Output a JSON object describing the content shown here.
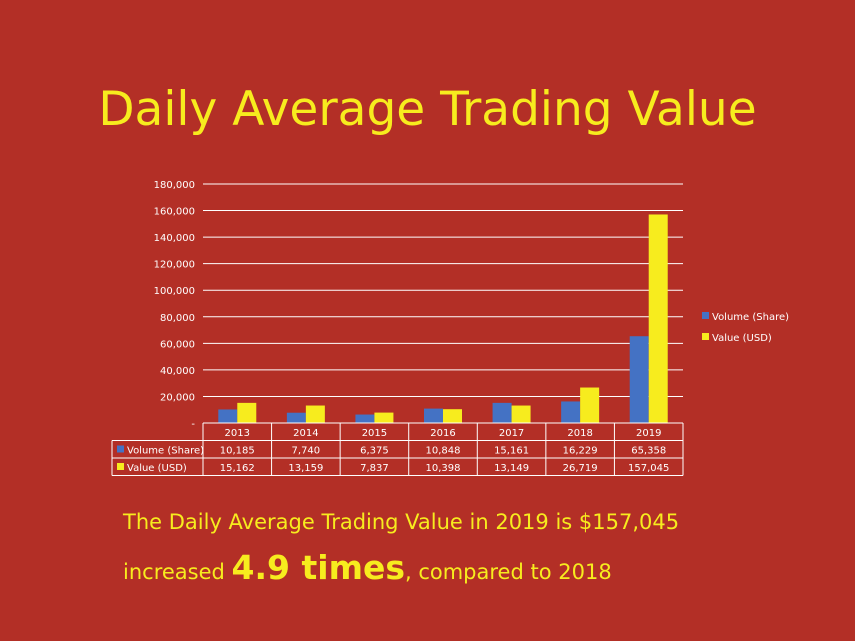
{
  "slide": {
    "title": "Daily Average Trading Value",
    "caption_line1": "The Daily Average Trading Value in 2019 is $157,045",
    "caption_line2_prefix": "increased ",
    "caption_line2_emphasis": "4.9 times",
    "caption_line2_suffix": ", compared to 2018"
  },
  "colors": {
    "background": "#b32f26",
    "title": "#f7ec1e",
    "volume": "#4472c4",
    "value": "#f7ec1e",
    "grid": "#ffffff",
    "text": "#ffffff"
  },
  "chart_data": {
    "type": "bar",
    "categories": [
      "2013",
      "2014",
      "2015",
      "2016",
      "2017",
      "2018",
      "2019"
    ],
    "series": [
      {
        "name": "Volume (Share)",
        "values": [
          10185,
          7740,
          6375,
          10848,
          15161,
          16229,
          65358
        ],
        "display": [
          "10,185",
          "7,740",
          "6,375",
          "10,848",
          "15,161",
          "16,229",
          "65,358"
        ]
      },
      {
        "name": "Value (USD)",
        "values": [
          15162,
          13159,
          7837,
          10398,
          13149,
          26719,
          157045
        ],
        "display": [
          "15,162",
          "13,159",
          "7,837",
          "10,398",
          "13,149",
          "26,719",
          "157,045"
        ]
      }
    ],
    "ylim": [
      0,
      180000
    ],
    "yticks": [
      "-",
      "20,000",
      "40,000",
      "60,000",
      "80,000",
      "100,000",
      "120,000",
      "140,000",
      "160,000",
      "180,000"
    ],
    "grid": true,
    "legend_position": "right",
    "data_table": true
  }
}
